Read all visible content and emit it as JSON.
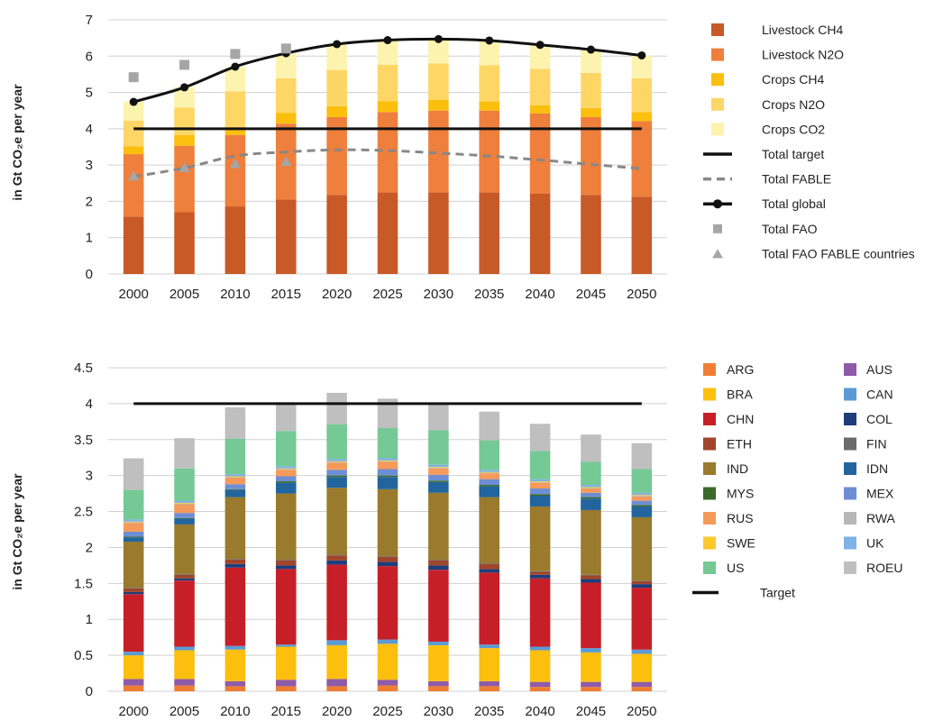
{
  "chart_data": [
    {
      "type": "bar",
      "stacked": true,
      "ylabel": "in Gt CO₂e per year",
      "ylim": [
        0,
        7
      ],
      "yticks": [
        "0",
        "1",
        "2",
        "3",
        "4",
        "5",
        "6",
        "7"
      ],
      "grid": true,
      "legend_position": "right",
      "categories": [
        "2000",
        "2005",
        "2010",
        "2015",
        "2020",
        "2025",
        "2030",
        "2035",
        "2040",
        "2045",
        "2050"
      ],
      "series": [
        {
          "name": "Livestock CH4",
          "color": "#c85a28",
          "values": [
            1.58,
            1.7,
            1.86,
            2.05,
            2.18,
            2.25,
            2.25,
            2.25,
            2.21,
            2.18,
            2.13
          ]
        },
        {
          "name": "Livestock N2O",
          "color": "#ee7f3c",
          "values": [
            1.72,
            1.83,
            1.97,
            2.09,
            2.14,
            2.21,
            2.25,
            2.25,
            2.21,
            2.14,
            2.08
          ]
        },
        {
          "name": "Crops CH4",
          "color": "#fbbf0e",
          "values": [
            0.22,
            0.3,
            0.2,
            0.3,
            0.3,
            0.3,
            0.3,
            0.25,
            0.23,
            0.25,
            0.25
          ]
        },
        {
          "name": "Crops N2O",
          "color": "#fdd666",
          "values": [
            0.7,
            0.75,
            1.0,
            0.95,
            1.0,
            1.0,
            1.0,
            1.0,
            1.0,
            0.97,
            0.93
          ]
        },
        {
          "name": "Crops CO2",
          "color": "#fcf3ae",
          "values": [
            0.52,
            0.57,
            0.67,
            0.68,
            0.73,
            0.71,
            0.69,
            0.7,
            0.67,
            0.65,
            0.62
          ]
        }
      ],
      "lines": [
        {
          "name": "Total target",
          "style": "solid",
          "color": "#111111",
          "values": [
            4,
            4,
            4,
            4,
            4,
            4,
            4,
            4,
            4,
            4,
            4
          ]
        },
        {
          "name": "Total FABLE",
          "style": "dashed",
          "color": "#888888",
          "values": [
            2.68,
            2.92,
            3.25,
            3.36,
            3.42,
            3.4,
            3.33,
            3.25,
            3.14,
            3.02,
            2.9
          ]
        },
        {
          "name": "Total global",
          "style": "solid-markers",
          "color": "#111111",
          "values": [
            4.74,
            5.14,
            5.71,
            6.08,
            6.33,
            6.44,
            6.47,
            6.43,
            6.31,
            6.18,
            6.02
          ]
        }
      ],
      "points": [
        {
          "name": "Total FAO",
          "marker": "square",
          "color": "#a6a6a6",
          "x": [
            "2000",
            "2005",
            "2010",
            "2015"
          ],
          "values": [
            5.42,
            5.76,
            6.06,
            6.21
          ]
        },
        {
          "name": "Total FAO FABLE countries",
          "marker": "triangle",
          "color": "#a6a6a6",
          "x": [
            "2000",
            "2005",
            "2010",
            "2015"
          ],
          "values": [
            2.7,
            2.93,
            3.04,
            3.1
          ]
        }
      ]
    },
    {
      "type": "bar",
      "stacked": true,
      "ylabel": "in Gt CO₂e per year",
      "ylim": [
        0,
        4.5
      ],
      "yticks": [
        "0",
        "0.5",
        "1",
        "1.5",
        "2",
        "2.5",
        "3",
        "3.5",
        "4",
        "4.5"
      ],
      "grid": true,
      "legend_position": "right",
      "categories": [
        "2000",
        "2005",
        "2010",
        "2015",
        "2020",
        "2025",
        "2030",
        "2035",
        "2040",
        "2045",
        "2050"
      ],
      "series": [
        {
          "name": "ARG",
          "color": "#ef7e33",
          "values": [
            0.08,
            0.08,
            0.07,
            0.07,
            0.07,
            0.08,
            0.07,
            0.07,
            0.06,
            0.06,
            0.06
          ]
        },
        {
          "name": "AUS",
          "color": "#8e5ba8",
          "values": [
            0.09,
            0.09,
            0.07,
            0.09,
            0.1,
            0.08,
            0.07,
            0.07,
            0.07,
            0.07,
            0.07
          ]
        },
        {
          "name": "BRA",
          "color": "#fdbf0e",
          "values": [
            0.33,
            0.4,
            0.44,
            0.46,
            0.47,
            0.5,
            0.5,
            0.46,
            0.44,
            0.41,
            0.39
          ]
        },
        {
          "name": "CAN",
          "color": "#5b9bd5",
          "values": [
            0.05,
            0.05,
            0.05,
            0.03,
            0.07,
            0.06,
            0.05,
            0.05,
            0.05,
            0.06,
            0.06
          ]
        },
        {
          "name": "CHN",
          "color": "#c71f27",
          "values": [
            0.8,
            0.92,
            1.09,
            1.05,
            1.05,
            1.02,
            1.0,
            1.0,
            0.95,
            0.91,
            0.86
          ]
        },
        {
          "name": "COL",
          "color": "#1f3d7a",
          "values": [
            0.03,
            0.03,
            0.05,
            0.05,
            0.06,
            0.06,
            0.06,
            0.05,
            0.05,
            0.05,
            0.05
          ]
        },
        {
          "name": "ETH",
          "color": "#a0452a",
          "values": [
            0.05,
            0.05,
            0.06,
            0.07,
            0.07,
            0.07,
            0.07,
            0.07,
            0.04,
            0.05,
            0.04
          ]
        },
        {
          "name": "FIN",
          "color": "#6b6b6b",
          "values": [
            0.01,
            0.01,
            0.01,
            0.01,
            0.01,
            0.01,
            0.01,
            0.01,
            0.01,
            0.01,
            0.01
          ]
        },
        {
          "name": "IND",
          "color": "#9a7a2c",
          "values": [
            0.64,
            0.69,
            0.86,
            0.92,
            0.93,
            0.93,
            0.93,
            0.92,
            0.9,
            0.9,
            0.88
          ]
        },
        {
          "name": "IDN",
          "color": "#22659e",
          "values": [
            0.06,
            0.08,
            0.1,
            0.15,
            0.15,
            0.17,
            0.15,
            0.15,
            0.15,
            0.16,
            0.15
          ]
        },
        {
          "name": "MYS",
          "color": "#3b6a2a",
          "values": [
            0.01,
            0.01,
            0.01,
            0.02,
            0.02,
            0.02,
            0.02,
            0.02,
            0.02,
            0.02,
            0.02
          ]
        },
        {
          "name": "MEX",
          "color": "#6e8ed4",
          "values": [
            0.07,
            0.07,
            0.07,
            0.07,
            0.08,
            0.09,
            0.08,
            0.08,
            0.08,
            0.06,
            0.06
          ]
        },
        {
          "name": "RUS",
          "color": "#f59a5a",
          "values": [
            0.12,
            0.12,
            0.09,
            0.09,
            0.1,
            0.1,
            0.09,
            0.08,
            0.08,
            0.06,
            0.06
          ]
        },
        {
          "name": "RWA",
          "color": "#b7b7b7",
          "values": [
            0.01,
            0.01,
            0.01,
            0.01,
            0.01,
            0.01,
            0.01,
            0.01,
            0.01,
            0.01,
            0.01
          ]
        },
        {
          "name": "SWE",
          "color": "#fec72c",
          "values": [
            0.01,
            0.01,
            0.01,
            0.01,
            0.01,
            0.01,
            0.01,
            0.01,
            0.01,
            0.01,
            0.01
          ]
        },
        {
          "name": "UK",
          "color": "#7fb2e5",
          "values": [
            0.03,
            0.03,
            0.03,
            0.03,
            0.03,
            0.03,
            0.03,
            0.03,
            0.03,
            0.03,
            0.03
          ]
        },
        {
          "name": "US",
          "color": "#74c995",
          "values": [
            0.41,
            0.45,
            0.49,
            0.49,
            0.48,
            0.42,
            0.48,
            0.41,
            0.39,
            0.32,
            0.33
          ]
        },
        {
          "name": "ROEU",
          "color": "#bfbfbf",
          "values": [
            0.44,
            0.42,
            0.44,
            0.4,
            0.44,
            0.41,
            0.37,
            0.4,
            0.38,
            0.38,
            0.36
          ]
        }
      ],
      "lines": [
        {
          "name": "Target",
          "style": "solid",
          "color": "#111111",
          "values": [
            4,
            4,
            4,
            4,
            4,
            4,
            4,
            4,
            4,
            4,
            4
          ]
        }
      ]
    }
  ]
}
